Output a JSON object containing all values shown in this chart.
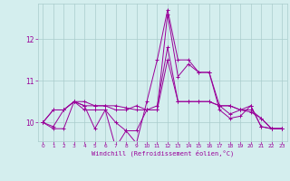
{
  "xlabel": "Windchill (Refroidissement éolien,°C)",
  "x": [
    0,
    1,
    2,
    3,
    4,
    5,
    6,
    7,
    8,
    9,
    10,
    11,
    12,
    13,
    14,
    15,
    16,
    17,
    18,
    19,
    20,
    21,
    22,
    23
  ],
  "lines": [
    [
      10.0,
      9.9,
      10.3,
      10.5,
      10.3,
      10.3,
      10.3,
      10.0,
      9.8,
      9.8,
      10.3,
      10.3,
      12.6,
      11.1,
      11.4,
      11.2,
      11.2,
      10.4,
      10.2,
      10.3,
      10.4,
      9.9,
      9.85,
      9.85
    ],
    [
      10.0,
      10.3,
      10.3,
      10.5,
      10.4,
      10.4,
      10.4,
      10.3,
      10.3,
      10.4,
      10.3,
      10.4,
      11.8,
      10.5,
      10.5,
      10.5,
      10.5,
      10.4,
      10.4,
      10.3,
      10.3,
      10.1,
      9.85,
      9.85
    ],
    [
      10.0,
      10.3,
      10.3,
      10.5,
      10.5,
      10.4,
      10.4,
      10.4,
      10.35,
      10.3,
      10.3,
      10.3,
      11.5,
      10.5,
      10.5,
      10.5,
      10.5,
      10.4,
      10.4,
      10.3,
      10.25,
      10.1,
      9.85,
      9.85
    ],
    [
      10.0,
      9.85,
      9.85,
      10.5,
      10.4,
      9.85,
      10.3,
      9.4,
      9.8,
      9.5,
      10.5,
      11.5,
      12.7,
      11.5,
      11.5,
      11.2,
      11.2,
      10.3,
      10.1,
      10.15,
      10.4,
      9.9,
      9.85,
      9.85
    ]
  ],
  "color": "#990099",
  "bg_color": "#d4eeee",
  "grid_color": "#aacccc",
  "ylim": [
    9.55,
    12.85
  ],
  "yticks": [
    10,
    11,
    12
  ],
  "xlim": [
    -0.5,
    23.5
  ],
  "xticks": [
    0,
    1,
    2,
    3,
    4,
    5,
    6,
    7,
    8,
    9,
    10,
    11,
    12,
    13,
    14,
    15,
    16,
    17,
    18,
    19,
    20,
    21,
    22,
    23
  ]
}
